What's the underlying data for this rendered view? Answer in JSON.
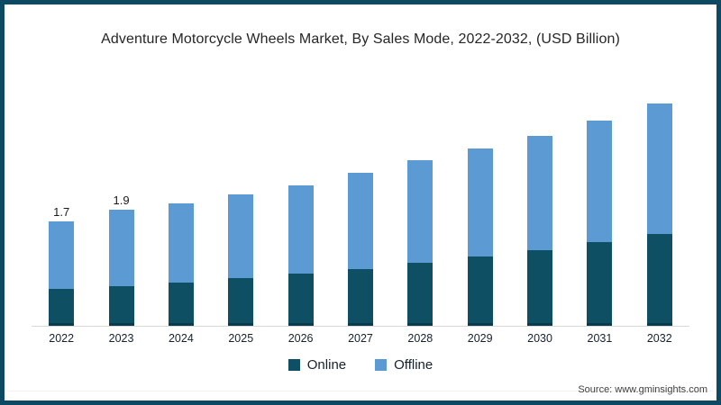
{
  "chart_data": {
    "type": "bar",
    "stacked": true,
    "title": "Adventure Motorcycle Wheels Market, By Sales Mode, 2022-2032, (USD Billion)",
    "categories": [
      "2022",
      "2023",
      "2024",
      "2025",
      "2026",
      "2027",
      "2028",
      "2029",
      "2030",
      "2031",
      "2032"
    ],
    "series": [
      {
        "name": "Online",
        "color": "#0e4f63",
        "values": [
          0.6,
          0.65,
          0.7,
          0.78,
          0.85,
          0.93,
          1.03,
          1.13,
          1.24,
          1.37,
          1.5
        ]
      },
      {
        "name": "Offline",
        "color": "#5b9ad2",
        "values": [
          1.1,
          1.25,
          1.3,
          1.37,
          1.45,
          1.57,
          1.67,
          1.77,
          1.86,
          1.98,
          2.13
        ]
      }
    ],
    "totals": [
      1.7,
      1.9,
      2.0,
      2.15,
      2.3,
      2.5,
      2.7,
      2.9,
      3.1,
      3.35,
      3.63
    ],
    "data_labels": [
      {
        "category": "2022",
        "text": "1.7"
      },
      {
        "category": "2023",
        "text": "1.9"
      }
    ],
    "xlabel": "",
    "ylabel": "",
    "ylim": [
      0,
      3.8
    ],
    "grid": false,
    "legend_position": "bottom"
  },
  "source": "Source: www.gminsights.com",
  "colors": {
    "frame_border": "#0c4a63",
    "axis_line": "#d8d8d8",
    "online": "#0e4f63",
    "online_bottom_edge": "#0a3a4d",
    "offline": "#5b9ad2",
    "title_text": "#262626",
    "label_text": "#16212e"
  }
}
